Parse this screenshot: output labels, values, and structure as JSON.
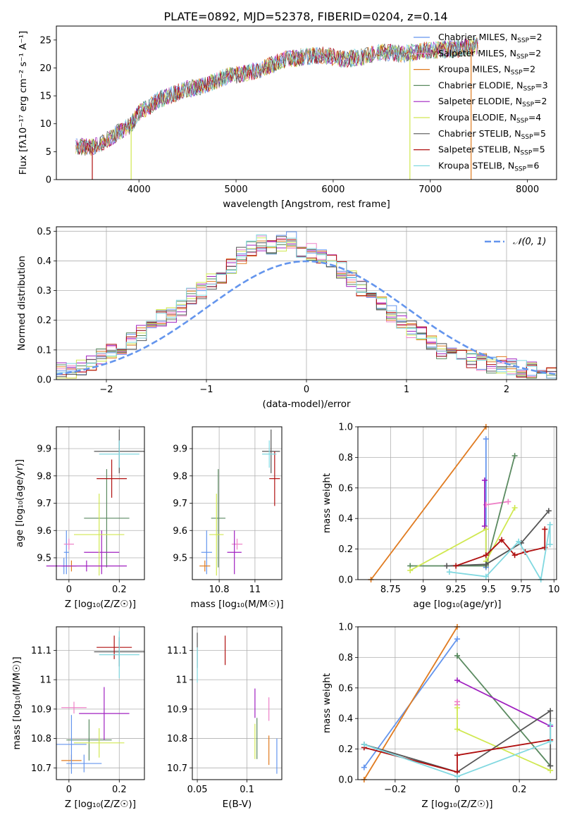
{
  "colors": {
    "chabrier_miles": "#6495ed",
    "salpeter_miles": "#ee82c8",
    "kroupa_miles": "#e07b20",
    "chabrier_elodie": "#5a8a60",
    "salpeter_elodie": "#a020c0",
    "kroupa_elodie": "#d0e850",
    "chabrier_stelib": "#555555",
    "salpeter_stelib": "#b01010",
    "kroupa_stelib": "#80d8e0",
    "normal": "#6495ed"
  },
  "models": [
    {
      "key": "chabrier_miles",
      "pre": "Chabrier MILES, N",
      "sub": "SSP",
      "post": "=2"
    },
    {
      "key": "salpeter_miles",
      "pre": "Salpeter MILES, N",
      "sub": "SSP",
      "post": "=2"
    },
    {
      "key": "kroupa_miles",
      "pre": "Kroupa MILES, N",
      "sub": "SSP",
      "post": "=2"
    },
    {
      "key": "chabrier_elodie",
      "pre": "Chabrier ELODIE, N",
      "sub": "SSP",
      "post": "=3"
    },
    {
      "key": "salpeter_elodie",
      "pre": "Salpeter ELODIE, N",
      "sub": "SSP",
      "post": "=2"
    },
    {
      "key": "kroupa_elodie",
      "pre": "Kroupa ELODIE, N",
      "sub": "SSP",
      "post": "=4"
    },
    {
      "key": "chabrier_stelib",
      "pre": "Chabrier STELIB, N",
      "sub": "SSP",
      "post": "=5"
    },
    {
      "key": "salpeter_stelib",
      "pre": "Salpeter STELIB, N",
      "sub": "SSP",
      "post": "=5"
    },
    {
      "key": "kroupa_stelib",
      "pre": "Kroupa STELIB, N",
      "sub": "SSP",
      "post": "=6"
    }
  ],
  "chart_data": [
    {
      "type": "line",
      "panel": "spectrum",
      "title": "PLATE=0892, MJD=52378, FIBERID=0204, z=0.14",
      "xlabel": "wavelength [Angstrom, rest frame]",
      "ylabel": "Flux [fλ10⁻¹⁷ erg cm⁻² s⁻¹ A⁻¹]",
      "xlim": [
        3150,
        8300
      ],
      "ylim": [
        0,
        27.5
      ],
      "xticks": [
        4000,
        5000,
        6000,
        7000,
        8000
      ],
      "yticks": [
        0,
        5,
        10,
        15,
        20,
        25
      ],
      "grid": false,
      "legend": "top-right",
      "x": [
        3350,
        3500,
        3600,
        3700,
        3800,
        3900,
        4000,
        4100,
        4200,
        4300,
        4500,
        4700,
        4900,
        5100,
        5300,
        5500,
        5700,
        5900,
        6100,
        6300,
        6500,
        6700,
        6900,
        7100,
        7300,
        7500
      ],
      "y": [
        6.0,
        5.7,
        6.5,
        7.3,
        8.6,
        9.5,
        12.0,
        13.0,
        14.3,
        15.0,
        16.2,
        17.0,
        18.5,
        19.0,
        20.0,
        21.5,
        22.0,
        22.3,
        21.5,
        22.0,
        22.8,
        22.5,
        23.0,
        23.3,
        23.5,
        24.0
      ]
    },
    {
      "type": "bar",
      "panel": "residual-histogram",
      "xlabel": "(data-model)/error",
      "ylabel": "Normed distribution",
      "xlim": [
        -2.5,
        2.5
      ],
      "ylim": [
        0,
        0.515
      ],
      "xticks": [
        -2,
        -1,
        0,
        1,
        2
      ],
      "yticks": [
        0.0,
        0.1,
        0.2,
        0.3,
        0.4,
        0.5
      ],
      "grid": true,
      "legend": "top-right",
      "legend_label": "𝒩(0, 1)",
      "bin_width": 0.1,
      "bin_centers": [
        -2.45,
        -2.35,
        -2.25,
        -2.15,
        -2.05,
        -1.95,
        -1.85,
        -1.75,
        -1.65,
        -1.55,
        -1.45,
        -1.35,
        -1.25,
        -1.15,
        -1.05,
        -0.95,
        -0.85,
        -0.75,
        -0.65,
        -0.55,
        -0.45,
        -0.35,
        -0.25,
        -0.15,
        -0.05,
        0.05,
        0.15,
        0.25,
        0.35,
        0.45,
        0.55,
        0.65,
        0.75,
        0.85,
        0.95,
        1.05,
        1.15,
        1.25,
        1.35,
        1.45,
        1.55,
        1.65,
        1.75,
        1.85,
        1.95,
        2.05,
        2.15,
        2.25,
        2.35,
        2.45
      ],
      "values": [
        0.03,
        0.025,
        0.04,
        0.06,
        0.08,
        0.09,
        0.11,
        0.13,
        0.16,
        0.18,
        0.21,
        0.22,
        0.24,
        0.28,
        0.3,
        0.33,
        0.35,
        0.38,
        0.42,
        0.44,
        0.46,
        0.45,
        0.46,
        0.47,
        0.44,
        0.43,
        0.41,
        0.4,
        0.37,
        0.34,
        0.31,
        0.29,
        0.26,
        0.22,
        0.2,
        0.17,
        0.15,
        0.12,
        0.1,
        0.09,
        0.08,
        0.07,
        0.06,
        0.05,
        0.05,
        0.04,
        0.035,
        0.03,
        0.025,
        0.02
      ]
    },
    {
      "type": "scatter",
      "panel": "Z-vs-age",
      "xlabel": "Z [log₁₀(Z/Z☉)]",
      "ylabel": "age  [log₁₀(age/yr)]",
      "xlim": [
        -0.05,
        0.3
      ],
      "ylim": [
        9.42,
        9.98
      ],
      "xticks": [
        0.0,
        0.2
      ],
      "yticks": [
        9.5,
        9.6,
        9.7,
        9.8,
        9.9
      ],
      "grid": true,
      "points": [
        {
          "model": "chabrier_miles",
          "x": -0.01,
          "y": 9.52,
          "xerr": 0.01,
          "yerr": 0.08
        },
        {
          "model": "salpeter_miles",
          "x": 0.0,
          "y": 9.55,
          "xerr": 0.02,
          "yerr": 0.02
        },
        {
          "model": "kroupa_miles",
          "x": 0.01,
          "y": 9.47,
          "xerr": 0.02,
          "yerr": 0.02
        },
        {
          "model": "chabrier_elodie",
          "x": 0.15,
          "y": 9.645,
          "xerr": 0.09,
          "yerr": 0.18
        },
        {
          "model": "salpeter_elodie",
          "x": 0.13,
          "y": 9.52,
          "xerr": 0.07,
          "yerr": 0.08
        },
        {
          "model": "kroupa_elodie",
          "x": 0.12,
          "y": 9.585,
          "xerr": 0.1,
          "yerr": 0.15
        },
        {
          "model": "chabrier_stelib",
          "x": 0.2,
          "y": 9.89,
          "xerr": 0.1,
          "yerr": 0.08
        },
        {
          "model": "salpeter_stelib",
          "x": 0.17,
          "y": 9.79,
          "xerr": 0.06,
          "yerr": 0.07
        },
        {
          "model": "kroupa_stelib",
          "x": 0.2,
          "y": 9.88,
          "xerr": 0.08,
          "yerr": 0.05
        },
        {
          "model": "chabrier_miles",
          "x": -0.02,
          "y": 9.47,
          "xerr": 0.01,
          "yerr": 0.03
        },
        {
          "model": "salpeter_elodie",
          "x": 0.07,
          "y": 9.47,
          "xerr": 0.16,
          "yerr": 0.02
        }
      ]
    },
    {
      "type": "scatter",
      "panel": "mass-vs-age",
      "xlabel": "mass [log₁₀(M/M☉)]",
      "xlim": [
        10.65,
        11.15
      ],
      "ylim": [
        9.42,
        9.98
      ],
      "xticks": [
        10.8,
        11.0
      ],
      "yticks": [
        9.5,
        9.6,
        9.7,
        9.8,
        9.9
      ],
      "grid": true,
      "points": [
        {
          "model": "chabrier_miles",
          "x": 10.73,
          "y": 9.52,
          "xerr": 0.03,
          "yerr": 0.08
        },
        {
          "model": "salpeter_miles",
          "x": 10.9,
          "y": 9.55,
          "xerr": 0.03,
          "yerr": 0.02
        },
        {
          "model": "kroupa_miles",
          "x": 10.72,
          "y": 9.47,
          "xerr": 0.03,
          "yerr": 0.02
        },
        {
          "model": "chabrier_elodie",
          "x": 10.795,
          "y": 9.645,
          "xerr": 0.04,
          "yerr": 0.18
        },
        {
          "model": "salpeter_elodie",
          "x": 10.885,
          "y": 9.52,
          "xerr": 0.04,
          "yerr": 0.08
        },
        {
          "model": "kroupa_elodie",
          "x": 10.785,
          "y": 9.585,
          "xerr": 0.04,
          "yerr": 0.15
        },
        {
          "model": "chabrier_stelib",
          "x": 11.09,
          "y": 9.89,
          "xerr": 0.05,
          "yerr": 0.08
        },
        {
          "model": "salpeter_stelib",
          "x": 11.11,
          "y": 9.79,
          "xerr": 0.03,
          "yerr": 0.1
        },
        {
          "model": "kroupa_stelib",
          "x": 11.08,
          "y": 9.88,
          "xerr": 0.04,
          "yerr": 0.05
        }
      ]
    },
    {
      "type": "line",
      "panel": "age-vs-mass-weight",
      "xlabel": "age  [log₁₀(age/yr)]",
      "ylabel": "mass weight",
      "xlim": [
        8.5,
        10.02
      ],
      "ylim": [
        0.0,
        1.0
      ],
      "xticks": [
        8.75,
        9.0,
        9.25,
        9.5,
        9.75,
        10.0
      ],
      "yticks": [
        0.0,
        0.2,
        0.4,
        0.6,
        0.8,
        1.0
      ],
      "grid": true,
      "series": [
        {
          "model": "chabrier_miles",
          "x": [
            9.48,
            9.48
          ],
          "y": [
            0.92,
            0.08
          ]
        },
        {
          "model": "salpeter_miles",
          "x": [
            9.48,
            9.65
          ],
          "y": [
            0.49,
            0.51
          ]
        },
        {
          "model": "kroupa_miles",
          "x": [
            8.6,
            9.48
          ],
          "y": [
            0.0,
            1.0
          ]
        },
        {
          "model": "chabrier_elodie",
          "x": [
            8.9,
            9.48,
            9.7
          ],
          "y": [
            0.09,
            0.09,
            0.81
          ]
        },
        {
          "model": "salpeter_elodie",
          "x": [
            9.47,
            9.47
          ],
          "y": [
            0.65,
            0.35
          ]
        },
        {
          "model": "kroupa_elodie",
          "x": [
            8.9,
            9.48,
            9.48,
            9.7
          ],
          "y": [
            0.06,
            0.33,
            0.12,
            0.47
          ]
        },
        {
          "model": "chabrier_stelib",
          "x": [
            9.18,
            9.48,
            9.75,
            9.96
          ],
          "y": [
            0.09,
            0.1,
            0.24,
            0.45
          ]
        },
        {
          "model": "salpeter_stelib",
          "x": [
            9.25,
            9.48,
            9.6,
            9.7,
            9.78,
            9.93,
            9.93
          ],
          "y": [
            0.09,
            0.16,
            0.26,
            0.16,
            0.18,
            0.21,
            0.33
          ]
        },
        {
          "model": "kroupa_stelib",
          "x": [
            9.2,
            9.48,
            9.73,
            9.9,
            9.97,
            9.97
          ],
          "y": [
            0.05,
            0.02,
            0.25,
            0.0,
            0.36,
            0.23
          ]
        }
      ]
    },
    {
      "type": "scatter",
      "panel": "Z-vs-mass",
      "xlabel": "Z [log₁₀(Z/Z☉)]",
      "ylabel": "mass [log₁₀(M/M☉)]",
      "xlim": [
        -0.05,
        0.3
      ],
      "ylim": [
        10.66,
        11.18
      ],
      "xticks": [
        0.0,
        0.2
      ],
      "yticks": [
        10.7,
        10.8,
        10.9,
        11.0,
        11.1
      ],
      "grid": true,
      "points": [
        {
          "model": "chabrier_miles",
          "x": 0.06,
          "y": 10.715,
          "xerr": 0.07,
          "yerr": 0.03
        },
        {
          "model": "salpeter_miles",
          "x": 0.02,
          "y": 10.905,
          "xerr": 0.05,
          "yerr": 0.02
        },
        {
          "model": "kroupa_miles",
          "x": 0.01,
          "y": 10.725,
          "xerr": 0.04,
          "yerr": 0.02
        },
        {
          "model": "chabrier_elodie",
          "x": 0.08,
          "y": 10.795,
          "xerr": 0.09,
          "yerr": 0.07
        },
        {
          "model": "salpeter_elodie",
          "x": 0.14,
          "y": 10.885,
          "xerr": 0.1,
          "yerr": 0.09
        },
        {
          "model": "kroupa_elodie",
          "x": 0.12,
          "y": 10.785,
          "xerr": 0.1,
          "yerr": 0.05
        },
        {
          "model": "chabrier_stelib",
          "x": 0.2,
          "y": 11.095,
          "xerr": 0.1,
          "yerr": 0.05
        },
        {
          "model": "salpeter_stelib",
          "x": 0.18,
          "y": 11.11,
          "xerr": 0.07,
          "yerr": 0.04
        },
        {
          "model": "kroupa_stelib",
          "x": 0.2,
          "y": 11.085,
          "xerr": 0.08,
          "yerr": 0.08
        },
        {
          "model": "chabrier_miles",
          "x": 0.01,
          "y": 10.78,
          "xerr": 0.06,
          "yerr": 0.1
        }
      ]
    },
    {
      "type": "scatter",
      "panel": "EBV-vs-mass",
      "xlabel": "E(B-V)",
      "xlim": [
        0.045,
        0.135
      ],
      "ylim": [
        10.66,
        11.18
      ],
      "xticks": [
        0.05,
        0.1
      ],
      "yticks": [
        10.7,
        10.8,
        10.9,
        11.0,
        11.1
      ],
      "grid": true,
      "points": [
        {
          "model": "chabrier_miles",
          "x": 0.13,
          "y": 10.74,
          "xerr": 0.0,
          "yerr": 0.06
        },
        {
          "model": "salpeter_miles",
          "x": 0.122,
          "y": 10.9,
          "xerr": 0.0,
          "yerr": 0.04
        },
        {
          "model": "kroupa_miles",
          "x": 0.122,
          "y": 10.76,
          "xerr": 0.0,
          "yerr": 0.05
        },
        {
          "model": "chabrier_elodie",
          "x": 0.11,
          "y": 10.8,
          "xerr": 0.0,
          "yerr": 0.07
        },
        {
          "model": "salpeter_elodie",
          "x": 0.108,
          "y": 10.92,
          "xerr": 0.0,
          "yerr": 0.05
        },
        {
          "model": "kroupa_elodie",
          "x": 0.108,
          "y": 10.79,
          "xerr": 0.0,
          "yerr": 0.06
        },
        {
          "model": "chabrier_stelib",
          "x": 0.05,
          "y": 11.1,
          "xerr": 0.0,
          "yerr": 0.06
        },
        {
          "model": "salpeter_stelib",
          "x": 0.078,
          "y": 11.1,
          "xerr": 0.0,
          "yerr": 0.05
        },
        {
          "model": "kroupa_stelib",
          "x": 0.05,
          "y": 11.05,
          "xerr": 0.0,
          "yerr": 0.06
        }
      ]
    },
    {
      "type": "line",
      "panel": "Z-vs-mass-weight",
      "xlabel": "Z [log₁₀(Z/Z☉)]",
      "ylabel": "mass weight",
      "xlim": [
        -0.32,
        0.32
      ],
      "ylim": [
        0.0,
        1.0
      ],
      "xticks": [
        -0.2,
        0.0,
        0.2
      ],
      "yticks": [
        0.0,
        0.2,
        0.4,
        0.6,
        0.8,
        1.0
      ],
      "grid": true,
      "series": [
        {
          "model": "chabrier_miles",
          "x": [
            -0.3,
            0.0
          ],
          "y": [
            0.08,
            0.92
          ]
        },
        {
          "model": "salpeter_miles",
          "x": [
            0.0,
            0.0
          ],
          "y": [
            0.49,
            0.51
          ]
        },
        {
          "model": "kroupa_miles",
          "x": [
            -0.3,
            0.0
          ],
          "y": [
            0.0,
            1.0
          ]
        },
        {
          "model": "chabrier_elodie",
          "x": [
            0.0,
            0.0,
            0.3
          ],
          "y": [
            0.81,
            0.81,
            0.09
          ]
        },
        {
          "model": "salpeter_elodie",
          "x": [
            0.0,
            0.3
          ],
          "y": [
            0.65,
            0.35
          ]
        },
        {
          "model": "kroupa_elodie",
          "x": [
            0.0,
            0.0,
            0.3
          ],
          "y": [
            0.47,
            0.33,
            0.06
          ]
        },
        {
          "model": "chabrier_stelib",
          "x": [
            -0.3,
            0.0,
            0.3,
            0.3
          ],
          "y": [
            0.23,
            0.05,
            0.45,
            0.09
          ]
        },
        {
          "model": "salpeter_stelib",
          "x": [
            -0.3,
            0.0,
            0.0,
            0.3
          ],
          "y": [
            0.21,
            0.05,
            0.16,
            0.26
          ]
        },
        {
          "model": "kroupa_stelib",
          "x": [
            -0.3,
            0.0,
            0.3,
            0.3
          ],
          "y": [
            0.23,
            0.02,
            0.25,
            0.36
          ]
        }
      ]
    }
  ]
}
